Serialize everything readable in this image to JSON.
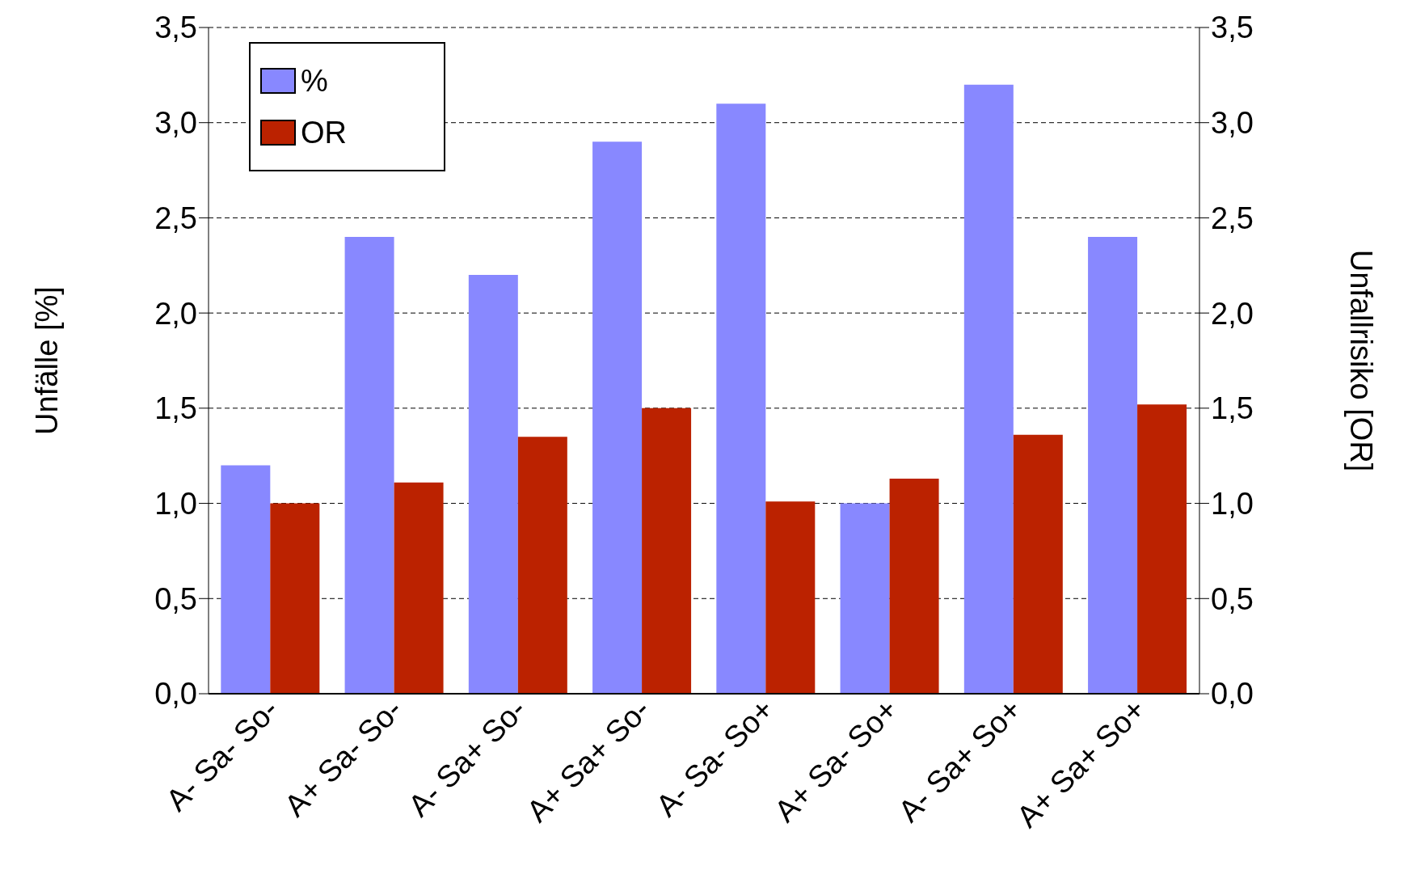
{
  "chart_data": {
    "type": "bar",
    "categories": [
      "A- Sa- So-",
      "A+ Sa- So-",
      "A- Sa+ So-",
      "A+ Sa+ So-",
      "A- Sa- So+",
      "A+ Sa- So+",
      "A- Sa+ So+",
      "A+ Sa+ So+"
    ],
    "series": [
      {
        "name": "%",
        "color": "#8888ff",
        "values": [
          1.2,
          2.4,
          2.2,
          2.9,
          3.1,
          1.0,
          3.2,
          2.4
        ]
      },
      {
        "name": "OR",
        "color": "#bb2200",
        "axis": "y2",
        "values": [
          1.0,
          1.11,
          1.35,
          1.5,
          1.01,
          1.13,
          1.36,
          1.52
        ]
      }
    ],
    "ylabel": "Unfälle [%]",
    "y2label": "Unfallrisiko [OR]",
    "ylim": [
      0,
      3.5
    ],
    "yticks": [
      {
        "value": 0,
        "label": "0,0"
      },
      {
        "value": 0.5,
        "label": "0,5"
      },
      {
        "value": 1,
        "label": "1,0"
      },
      {
        "value": 1.5,
        "label": "1,5"
      },
      {
        "value": 2,
        "label": "2,0"
      },
      {
        "value": 2.5,
        "label": "2,5"
      },
      {
        "value": 3,
        "label": "3,0"
      },
      {
        "value": 3.5,
        "label": "3,5"
      }
    ],
    "y2lim": [
      0,
      3.5
    ],
    "y2ticks": [
      {
        "value": 0,
        "label": "0,0"
      },
      {
        "value": 0.5,
        "label": "0,5"
      },
      {
        "value": 1,
        "label": "1,0"
      },
      {
        "value": 1.5,
        "label": "1,5"
      },
      {
        "value": 2,
        "label": "2,0"
      },
      {
        "value": 2.5,
        "label": "2,5"
      },
      {
        "value": 3,
        "label": "3,0"
      },
      {
        "value": 3.5,
        "label": "3,5"
      }
    ],
    "grid": "y",
    "legend": "top left"
  }
}
